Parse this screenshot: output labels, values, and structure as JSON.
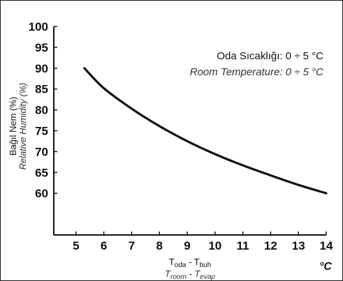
{
  "chart_data": {
    "type": "line",
    "xlim": [
      4.2,
      14
    ],
    "ylim": [
      50,
      100
    ],
    "xticks": [
      5,
      6,
      7,
      8,
      9,
      10,
      11,
      12,
      13,
      14
    ],
    "yticks": [
      60,
      65,
      70,
      75,
      80,
      85,
      90,
      95,
      100
    ],
    "x": [
      5.3,
      6,
      7,
      8,
      9,
      10,
      11,
      12,
      13,
      14
    ],
    "y": [
      90,
      85.2,
      80.3,
      76.1,
      72.5,
      69.4,
      66.7,
      64.3,
      62.0,
      60.0
    ],
    "ylabel": "Bağıl Nem (%)",
    "ylabel_en": "Relative Humidity (%)",
    "xlabel_main": "T",
    "xlabel_sub1": "oda",
    "xlabel_sep": " - T",
    "xlabel_sub2": "buh",
    "xlabel_en_main": "T",
    "xlabel_en_sub1": "room",
    "xlabel_en_sep": " - T",
    "xlabel_en_sub2": "evap",
    "x_unit": "°C",
    "annotation": "Oda Sıcaklığı: 0 ÷ 5 °C",
    "annotation_en": "Room Temperature: 0 ÷ 5 °C",
    "grid": false,
    "line_color": "#111111"
  }
}
